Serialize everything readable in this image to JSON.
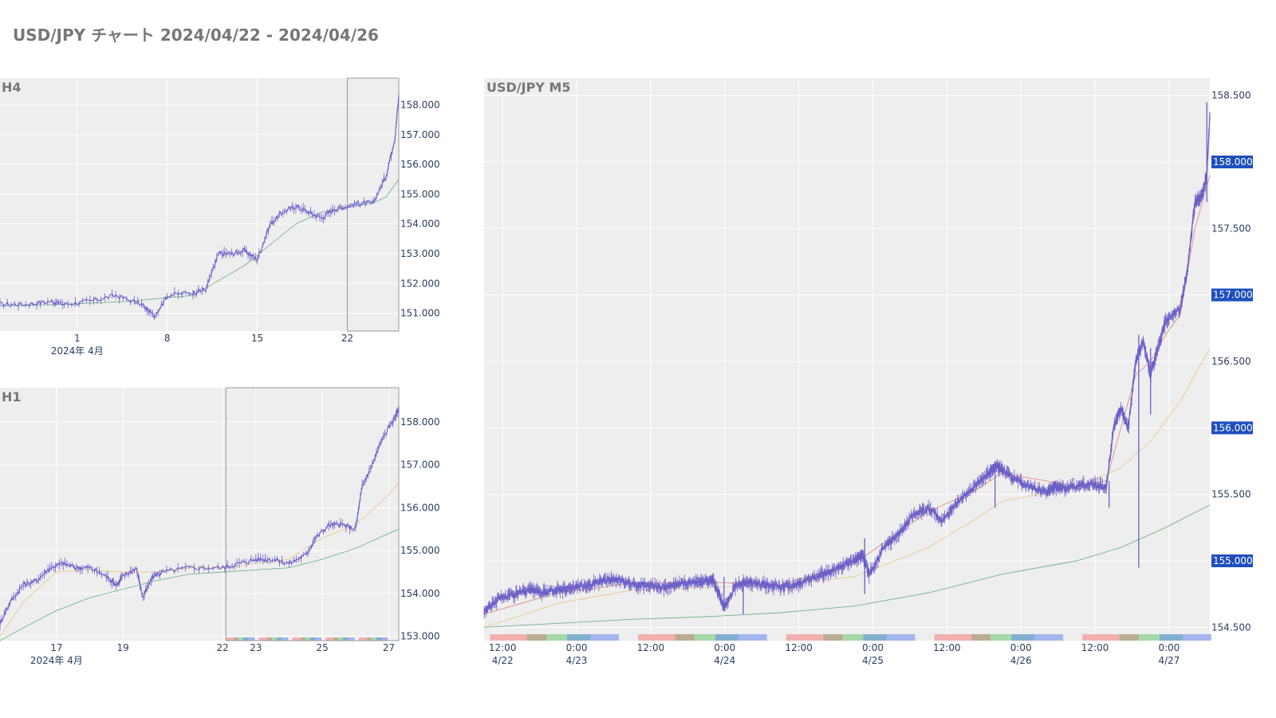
{
  "page": {
    "title": "USD/JPY チャート 2024/04/22 - 2024/04/26"
  },
  "colors": {
    "plot_bg": "#eeeeee",
    "grid": "#ffffff",
    "candle": "#6b5fc7",
    "ma_short": "#e07a6a",
    "ma_mid": "#e8c27a",
    "ma_long": "#5aaa82",
    "highlight_box": "#999999",
    "price_box": "#1f4fbf",
    "session_tokyo": "#f2a4a4",
    "session_overlap": "#b0a080",
    "session_london": "#9bd49b",
    "session_london_ny": "#6fa3c8",
    "session_ny": "#97acee",
    "event_dot": "#444444"
  },
  "chart_data": [
    {
      "id": "h4",
      "title": "H4",
      "type": "candlestick",
      "xlim": [
        -5,
        26
      ],
      "ylim": [
        150.4,
        158.9
      ],
      "x_ticks": [
        {
          "v": 1,
          "label": "1"
        },
        {
          "v": 8,
          "label": "8"
        },
        {
          "v": 15,
          "label": "15"
        },
        {
          "v": 22,
          "label": "22"
        }
      ],
      "x_subtitle": {
        "v": 1,
        "label": "2024年 4月"
      },
      "y_ticks": [
        151,
        152,
        153,
        154,
        155,
        156,
        157,
        158
      ],
      "y_tick_labels": [
        "151.000",
        "152.000",
        "153.000",
        "154.000",
        "155.000",
        "156.000",
        "157.000",
        "158.000"
      ],
      "highlight_x": [
        22,
        27
      ],
      "series": [
        {
          "name": "",
          "role": "price",
          "points": [
            [
              -5,
              151.3
            ],
            [
              -3,
              151.3
            ],
            [
              -1,
              151.4
            ],
            [
              0,
              151.3
            ],
            [
              2,
              151.4
            ],
            [
              4,
              151.6
            ],
            [
              6,
              151.3
            ],
            [
              7,
              150.9
            ],
            [
              8,
              151.6
            ],
            [
              10,
              151.7
            ],
            [
              11,
              151.8
            ],
            [
              12,
              153.0
            ],
            [
              13,
              153.0
            ],
            [
              14,
              153.1
            ],
            [
              15,
              152.8
            ],
            [
              16,
              154.0
            ],
            [
              17,
              154.4
            ],
            [
              18,
              154.6
            ],
            [
              19,
              154.4
            ],
            [
              20,
              154.2
            ],
            [
              21,
              154.5
            ],
            [
              22,
              154.6
            ],
            [
              23,
              154.7
            ],
            [
              24,
              154.7
            ],
            [
              25,
              155.6
            ],
            [
              25.7,
              156.9
            ],
            [
              26,
              158.3
            ]
          ]
        },
        {
          "name": "",
          "role": "ma",
          "points": [
            [
              -5,
              151.25
            ],
            [
              0,
              151.3
            ],
            [
              5,
              151.4
            ],
            [
              10,
              151.6
            ],
            [
              12,
              152.1
            ],
            [
              14,
              152.6
            ],
            [
              16,
              153.3
            ],
            [
              18,
              154.0
            ],
            [
              20,
              154.4
            ],
            [
              22,
              154.55
            ],
            [
              24,
              154.7
            ],
            [
              25,
              154.9
            ],
            [
              26,
              155.5
            ]
          ]
        }
      ]
    },
    {
      "id": "h1",
      "title": "H1",
      "type": "candlestick",
      "xlim": [
        15.3,
        27.3
      ],
      "ylim": [
        152.9,
        158.8
      ],
      "x_ticks": [
        {
          "v": 17,
          "label": "17"
        },
        {
          "v": 19,
          "label": "19"
        },
        {
          "v": 22,
          "label": "22"
        },
        {
          "v": 23,
          "label": "23"
        },
        {
          "v": 25,
          "label": "25"
        },
        {
          "v": 27,
          "label": "27"
        }
      ],
      "x_subtitle": {
        "v": 17,
        "label": "2024年 4月"
      },
      "y_ticks": [
        153,
        154,
        155,
        156,
        157,
        158
      ],
      "y_tick_labels": [
        "153.000",
        "154.000",
        "155.000",
        "156.000",
        "157.000",
        "158.000"
      ],
      "highlight_x": [
        22.1,
        27.3
      ],
      "series": [
        {
          "name": "",
          "role": "price",
          "points": [
            [
              15.3,
              153.3
            ],
            [
              15.6,
              153.8
            ],
            [
              16.0,
              154.2
            ],
            [
              16.4,
              154.3
            ],
            [
              16.8,
              154.6
            ],
            [
              17.2,
              154.7
            ],
            [
              17.6,
              154.6
            ],
            [
              18.0,
              154.6
            ],
            [
              18.5,
              154.4
            ],
            [
              18.8,
              154.2
            ],
            [
              19.0,
              154.4
            ],
            [
              19.4,
              154.6
            ],
            [
              19.6,
              153.9
            ],
            [
              19.9,
              154.4
            ],
            [
              20.2,
              154.5
            ],
            [
              21.0,
              154.6
            ],
            [
              22.0,
              154.6
            ],
            [
              22.5,
              154.7
            ],
            [
              23.0,
              154.8
            ],
            [
              23.5,
              154.8
            ],
            [
              24.0,
              154.7
            ],
            [
              24.5,
              154.9
            ],
            [
              24.8,
              155.3
            ],
            [
              25.2,
              155.6
            ],
            [
              25.6,
              155.6
            ],
            [
              26.0,
              155.5
            ],
            [
              26.2,
              156.5
            ],
            [
              26.5,
              157.0
            ],
            [
              26.8,
              157.6
            ],
            [
              27.1,
              158.0
            ],
            [
              27.3,
              158.3
            ]
          ]
        },
        {
          "name": "",
          "role": "ma_mid",
          "points": [
            [
              15.3,
              153.0
            ],
            [
              16.0,
              153.8
            ],
            [
              17.0,
              154.5
            ],
            [
              18.0,
              154.55
            ],
            [
              19.0,
              154.5
            ],
            [
              20.0,
              154.5
            ],
            [
              21.0,
              154.6
            ],
            [
              22.0,
              154.6
            ],
            [
              23.0,
              154.7
            ],
            [
              24.0,
              154.8
            ],
            [
              25.0,
              155.3
            ],
            [
              26.0,
              155.6
            ],
            [
              27.0,
              156.3
            ],
            [
              27.3,
              156.6
            ]
          ]
        },
        {
          "name": "",
          "role": "ma_long",
          "points": [
            [
              15.3,
              152.9
            ],
            [
              16.0,
              153.2
            ],
            [
              17.0,
              153.6
            ],
            [
              18.0,
              153.9
            ],
            [
              19.0,
              154.1
            ],
            [
              20.0,
              154.3
            ],
            [
              21.0,
              154.45
            ],
            [
              22.0,
              154.5
            ],
            [
              23.0,
              154.55
            ],
            [
              24.0,
              154.6
            ],
            [
              25.0,
              154.8
            ],
            [
              26.0,
              155.05
            ],
            [
              27.0,
              155.4
            ],
            [
              27.3,
              155.5
            ]
          ]
        }
      ]
    },
    {
      "id": "m5",
      "title": "USD/JPY M5",
      "type": "candlestick",
      "xlim": [
        0,
        4.9
      ],
      "ylim": [
        154.4,
        158.63
      ],
      "x_ticks": [
        {
          "v": 0.125,
          "label": "12:00",
          "sub": "4/22"
        },
        {
          "v": 0.625,
          "label": "0:00",
          "sub": "4/23"
        },
        {
          "v": 1.125,
          "label": "12:00",
          "sub": ""
        },
        {
          "v": 1.625,
          "label": "0:00",
          "sub": "4/24"
        },
        {
          "v": 2.125,
          "label": "12:00",
          "sub": ""
        },
        {
          "v": 2.625,
          "label": "0:00",
          "sub": "4/25"
        },
        {
          "v": 3.125,
          "label": "12:00",
          "sub": ""
        },
        {
          "v": 3.625,
          "label": "0:00",
          "sub": "4/26"
        },
        {
          "v": 4.125,
          "label": "12:00",
          "sub": ""
        },
        {
          "v": 4.625,
          "label": "0:00",
          "sub": "4/27"
        }
      ],
      "y_ticks": [
        154.5,
        155,
        155.5,
        156,
        156.5,
        157,
        157.5,
        158,
        158.5
      ],
      "y_tick_labels": [
        "154.500",
        "155.000",
        "155.500",
        "156.000",
        "156.500",
        "157.000",
        "157.500",
        "158.000",
        "158.500"
      ],
      "y_highlight_labels": [
        155,
        156,
        157,
        158
      ],
      "series": [
        {
          "name": "",
          "role": "price",
          "points": [
            [
              0.0,
              154.62
            ],
            [
              0.1,
              154.72
            ],
            [
              0.2,
              154.75
            ],
            [
              0.3,
              154.78
            ],
            [
              0.4,
              154.76
            ],
            [
              0.5,
              154.78
            ],
            [
              0.6,
              154.8
            ],
            [
              0.7,
              154.82
            ],
            [
              0.8,
              154.85
            ],
            [
              0.9,
              154.86
            ],
            [
              1.0,
              154.82
            ],
            [
              1.1,
              154.82
            ],
            [
              1.2,
              154.8
            ],
            [
              1.3,
              154.82
            ],
            [
              1.4,
              154.84
            ],
            [
              1.5,
              154.85
            ],
            [
              1.55,
              154.85
            ],
            [
              1.62,
              154.65
            ],
            [
              1.7,
              154.82
            ],
            [
              1.8,
              154.84
            ],
            [
              1.9,
              154.82
            ],
            [
              2.0,
              154.8
            ],
            [
              2.1,
              154.82
            ],
            [
              2.2,
              154.86
            ],
            [
              2.3,
              154.9
            ],
            [
              2.4,
              154.95
            ],
            [
              2.5,
              155.0
            ],
            [
              2.55,
              155.05
            ],
            [
              2.6,
              154.9
            ],
            [
              2.7,
              155.1
            ],
            [
              2.8,
              155.2
            ],
            [
              2.9,
              155.35
            ],
            [
              3.0,
              155.4
            ],
            [
              3.1,
              155.3
            ],
            [
              3.2,
              155.45
            ],
            [
              3.3,
              155.55
            ],
            [
              3.4,
              155.65
            ],
            [
              3.45,
              155.72
            ],
            [
              3.5,
              155.68
            ],
            [
              3.6,
              155.6
            ],
            [
              3.7,
              155.55
            ],
            [
              3.8,
              155.52
            ],
            [
              3.85,
              155.56
            ],
            [
              3.9,
              155.55
            ],
            [
              4.0,
              155.56
            ],
            [
              4.1,
              155.58
            ],
            [
              4.2,
              155.55
            ],
            [
              4.25,
              156.0
            ],
            [
              4.3,
              156.15
            ],
            [
              4.35,
              156.0
            ],
            [
              4.4,
              156.5
            ],
            [
              4.45,
              156.65
            ],
            [
              4.5,
              156.4
            ],
            [
              4.55,
              156.6
            ],
            [
              4.6,
              156.8
            ],
            [
              4.7,
              156.9
            ],
            [
              4.75,
              157.2
            ],
            [
              4.8,
              157.7
            ],
            [
              4.85,
              157.75
            ],
            [
              4.88,
              157.9
            ],
            [
              4.9,
              158.35
            ]
          ]
        },
        {
          "name": "",
          "role": "ma_short",
          "points": [
            [
              0.0,
              154.6
            ],
            [
              0.5,
              154.76
            ],
            [
              1.0,
              154.83
            ],
            [
              1.5,
              154.84
            ],
            [
              2.0,
              154.82
            ],
            [
              2.5,
              154.98
            ],
            [
              3.0,
              155.37
            ],
            [
              3.3,
              155.52
            ],
            [
              3.5,
              155.66
            ],
            [
              4.0,
              155.56
            ],
            [
              4.2,
              155.6
            ],
            [
              4.3,
              156.0
            ],
            [
              4.4,
              156.4
            ],
            [
              4.5,
              156.5
            ],
            [
              4.6,
              156.7
            ],
            [
              4.7,
              156.85
            ],
            [
              4.8,
              157.5
            ],
            [
              4.9,
              157.9
            ]
          ]
        },
        {
          "name": "",
          "role": "ma_mid",
          "points": [
            [
              0.0,
              154.5
            ],
            [
              0.5,
              154.68
            ],
            [
              1.0,
              154.78
            ],
            [
              1.5,
              154.8
            ],
            [
              2.0,
              154.82
            ],
            [
              2.5,
              154.88
            ],
            [
              3.0,
              155.1
            ],
            [
              3.3,
              155.3
            ],
            [
              3.5,
              155.45
            ],
            [
              4.0,
              155.55
            ],
            [
              4.3,
              155.7
            ],
            [
              4.5,
              155.9
            ],
            [
              4.7,
              156.2
            ],
            [
              4.9,
              156.6
            ]
          ]
        },
        {
          "name": "",
          "role": "ma_long",
          "points": [
            [
              0.0,
              154.5
            ],
            [
              0.5,
              154.53
            ],
            [
              1.0,
              154.56
            ],
            [
              1.5,
              154.58
            ],
            [
              2.0,
              154.61
            ],
            [
              2.5,
              154.66
            ],
            [
              3.0,
              154.76
            ],
            [
              3.5,
              154.9
            ],
            [
              4.0,
              155.0
            ],
            [
              4.3,
              155.1
            ],
            [
              4.6,
              155.25
            ],
            [
              4.9,
              155.42
            ]
          ]
        }
      ],
      "wicks": [
        {
          "x": 2.57,
          "low": 154.75,
          "high": 155.17
        },
        {
          "x": 1.62,
          "low": 154.62,
          "high": 154.88
        },
        {
          "x": 1.75,
          "low": 154.6,
          "high": 154.86
        },
        {
          "x": 3.45,
          "low": 155.4,
          "high": 155.75
        },
        {
          "x": 4.22,
          "low": 155.4,
          "high": 155.6
        },
        {
          "x": 4.42,
          "low": 154.95,
          "high": 156.7
        },
        {
          "x": 4.5,
          "low": 156.1,
          "high": 156.6
        },
        {
          "x": 4.88,
          "low": 157.7,
          "high": 158.45
        }
      ]
    }
  ]
}
